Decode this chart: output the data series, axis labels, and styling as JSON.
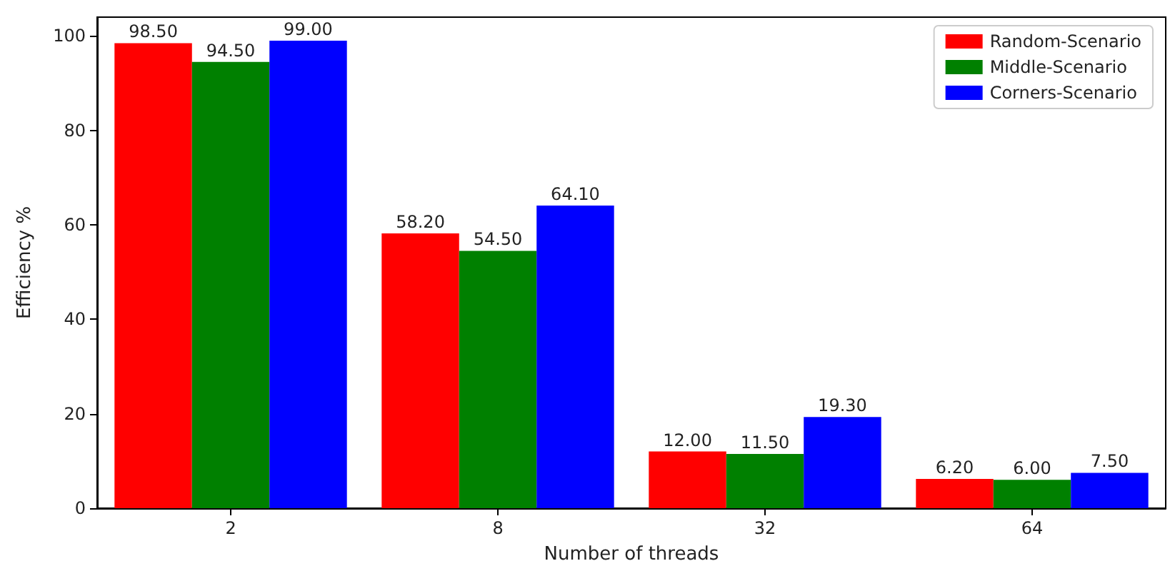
{
  "chart_data": {
    "type": "bar",
    "xlabel": "Number of threads",
    "ylabel": "Efficiency %",
    "categories": [
      "2",
      "8",
      "32",
      "64"
    ],
    "series": [
      {
        "name": "Random-Scenario",
        "color": "#ff0000",
        "values": [
          98.5,
          58.2,
          12.0,
          6.2
        ],
        "value_labels": [
          "98.50",
          "58.20",
          "12.00",
          "6.20"
        ]
      },
      {
        "name": "Middle-Scenario",
        "color": "#008000",
        "values": [
          94.5,
          54.5,
          11.5,
          6.0
        ],
        "value_labels": [
          "94.50",
          "54.50",
          "11.50",
          "6.00"
        ]
      },
      {
        "name": "Corners-Scenario",
        "color": "#0000ff",
        "values": [
          99.0,
          64.1,
          19.3,
          7.5
        ],
        "value_labels": [
          "99.00",
          "64.10",
          "19.30",
          "7.50"
        ]
      }
    ],
    "ylim": [
      0,
      104
    ],
    "yticks": [
      0,
      20,
      40,
      60,
      80,
      100
    ],
    "legend": "top right",
    "grid": false
  }
}
